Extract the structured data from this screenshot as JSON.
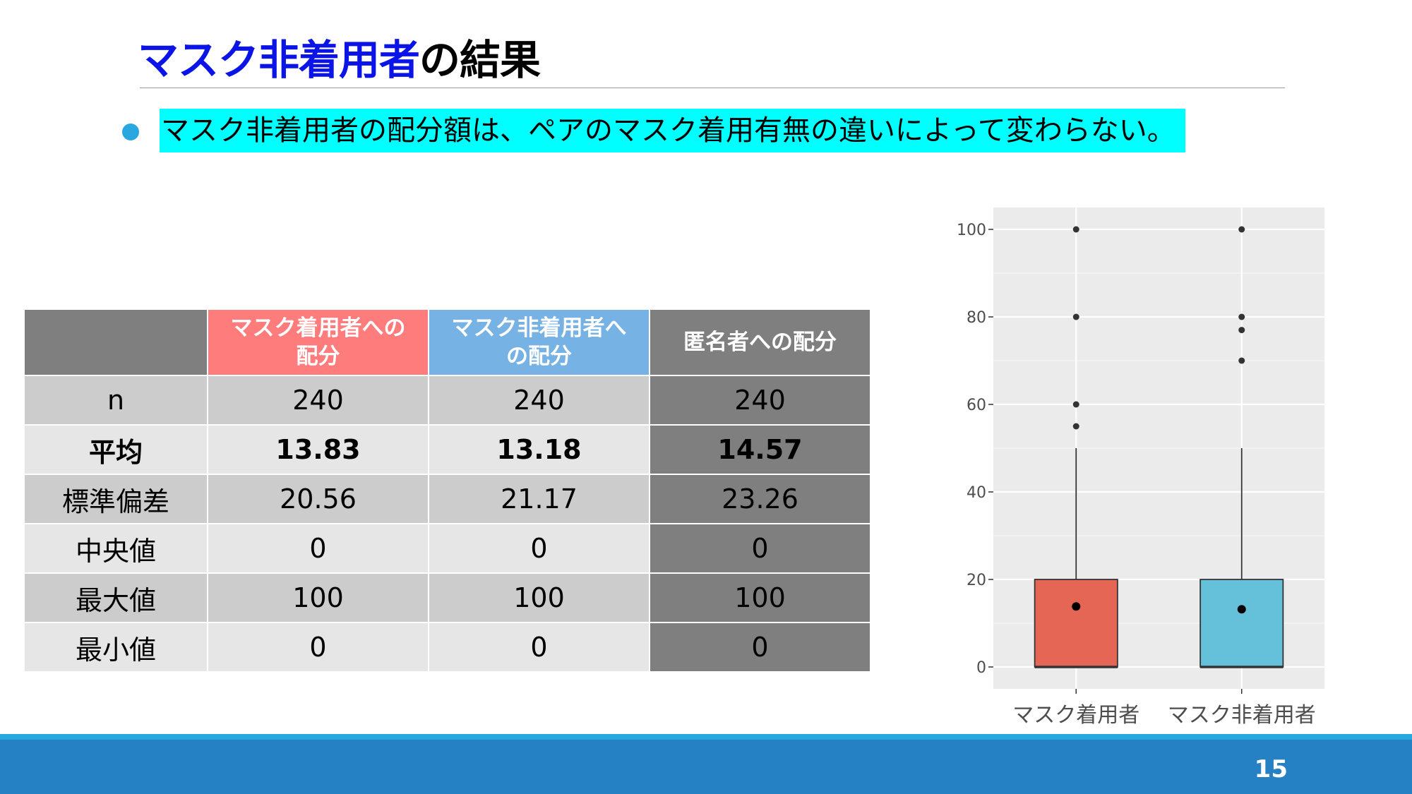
{
  "slide": {
    "title_accent": "マスク非着用者",
    "title_rest": "の結果",
    "bullet_text": "マスク非着用者の配分額は、ペアのマスク着用有無の違いによって変わらない。",
    "page_number": "15"
  },
  "table": {
    "headers": [
      "",
      "マスク着用者への\n配分",
      "マスク非着用者へ\nの配分",
      "匿名者への配分"
    ],
    "rows": [
      {
        "label": "n",
        "values": [
          "240",
          "240",
          "240"
        ]
      },
      {
        "label": "平均",
        "values": [
          "13.83",
          "13.18",
          "14.57"
        ]
      },
      {
        "label": "標準偏差",
        "values": [
          "20.56",
          "21.17",
          "23.26"
        ]
      },
      {
        "label": "中央値",
        "values": [
          "0",
          "0",
          "0"
        ]
      },
      {
        "label": "最大値",
        "values": [
          "100",
          "100",
          "100"
        ]
      },
      {
        "label": "最小値",
        "values": [
          "0",
          "0",
          "0"
        ]
      }
    ]
  },
  "chart_data": {
    "type": "boxplot",
    "categories": [
      "マスク着用者",
      "マスク非着用者"
    ],
    "ylim": [
      -5,
      105
    ],
    "y_ticks": [
      0,
      20,
      40,
      60,
      80,
      100
    ],
    "grid": true,
    "series": [
      {
        "category": "マスク着用者",
        "color": "#e66656",
        "q1": 0,
        "median": 0,
        "q3": 20,
        "whisker_low": 0,
        "whisker_high": 50,
        "mean": 13.83,
        "outliers": [
          55,
          60,
          80,
          100
        ]
      },
      {
        "category": "マスク非着用者",
        "color": "#64c1d9",
        "q1": 0,
        "median": 0,
        "q3": 20,
        "whisker_low": 0,
        "whisker_high": 50,
        "mean": 13.18,
        "outliers": [
          70,
          77,
          80,
          100
        ]
      }
    ]
  },
  "colors": {
    "title_accent": "#0a14e6",
    "highlight": "#00ffff",
    "bullet": "#29a8e0",
    "footer": "#2580c4",
    "header_mask": "#ff7c7c",
    "header_nomask": "#77b2e4",
    "header_anon": "#7f7f7f",
    "panel_bg": "#ebebeb"
  }
}
